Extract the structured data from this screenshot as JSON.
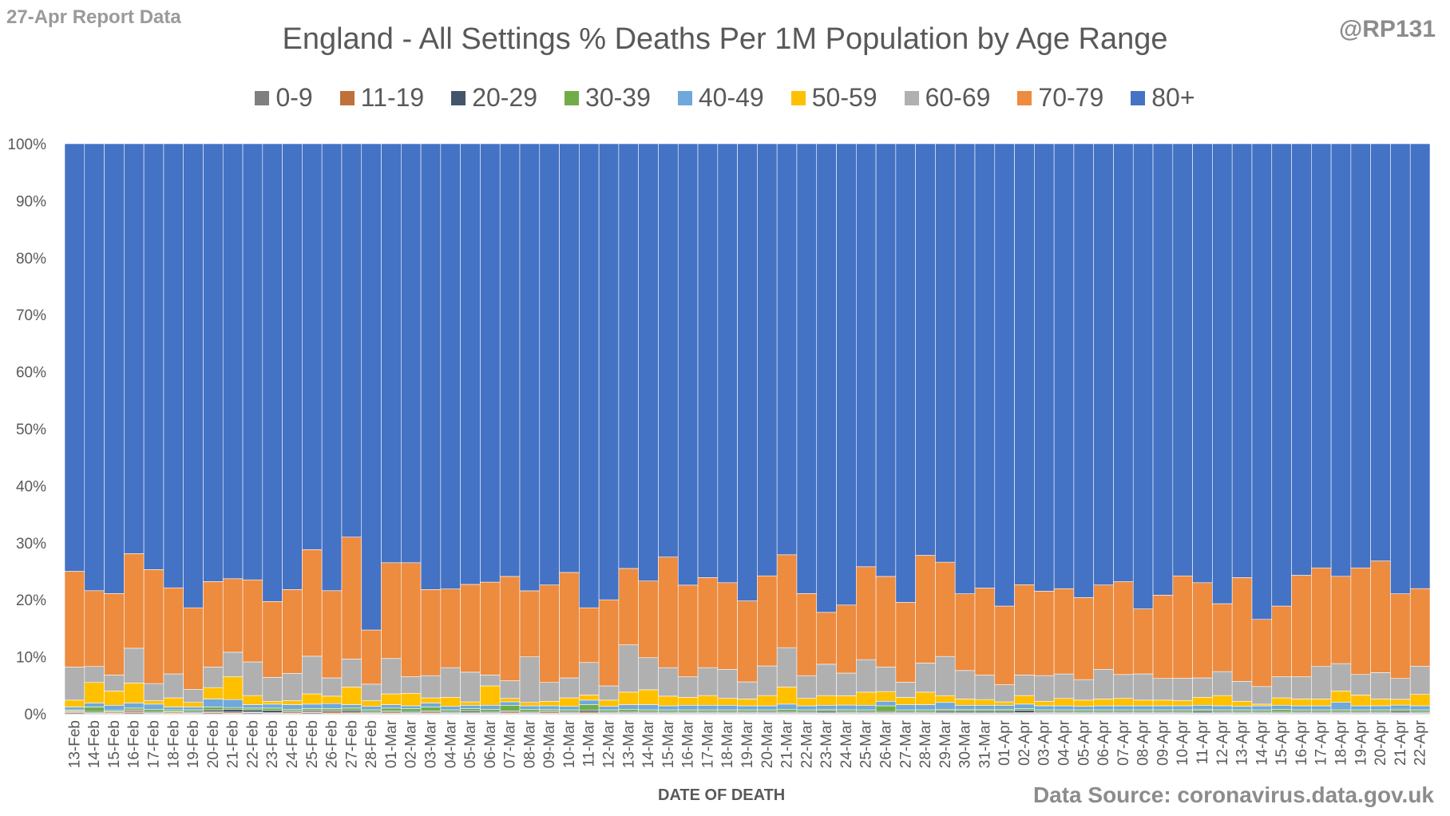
{
  "report_label": "27-Apr Report Data",
  "handle": "@RP131",
  "source": "Data Source: coronavirus.data.gov.uk",
  "colors": {
    "0-9": "#7f7f7f",
    "11-19": "#c0703a",
    "20-29": "#44546a",
    "30-39": "#70ad47",
    "40-49": "#6fa8dc",
    "50-59": "#ffc000",
    "60-69": "#b0b0b0",
    "70-79": "#ed8b3f",
    "80+": "#4472c4"
  },
  "chart_data": {
    "type": "bar",
    "stacked": "percent",
    "title": "England - All Settings % Deaths Per 1M Population by Age Range",
    "xlabel": "DATE OF DEATH",
    "ylabel": "",
    "ylim": [
      0,
      100
    ],
    "yticks": [
      "0%",
      "10%",
      "20%",
      "30%",
      "40%",
      "50%",
      "60%",
      "70%",
      "80%",
      "90%",
      "100%"
    ],
    "grid": false,
    "legend_position": "top",
    "categories": [
      "13-Feb",
      "14-Feb",
      "15-Feb",
      "16-Feb",
      "17-Feb",
      "18-Feb",
      "19-Feb",
      "20-Feb",
      "21-Feb",
      "22-Feb",
      "23-Feb",
      "24-Feb",
      "25-Feb",
      "26-Feb",
      "27-Feb",
      "28-Feb",
      "01-Mar",
      "02-Mar",
      "03-Mar",
      "04-Mar",
      "05-Mar",
      "06-Mar",
      "07-Mar",
      "08-Mar",
      "09-Mar",
      "10-Mar",
      "11-Mar",
      "12-Mar",
      "13-Mar",
      "14-Mar",
      "15-Mar",
      "16-Mar",
      "17-Mar",
      "18-Mar",
      "19-Mar",
      "20-Mar",
      "21-Mar",
      "22-Mar",
      "23-Mar",
      "24-Mar",
      "25-Mar",
      "26-Mar",
      "27-Mar",
      "28-Mar",
      "29-Mar",
      "30-Mar",
      "31-Mar",
      "01-Apr",
      "02-Apr",
      "03-Apr",
      "04-Apr",
      "05-Apr",
      "06-Apr",
      "07-Apr",
      "08-Apr",
      "09-Apr",
      "10-Apr",
      "11-Apr",
      "12-Apr",
      "13-Apr",
      "14-Apr",
      "15-Apr",
      "16-Apr",
      "17-Apr",
      "18-Apr",
      "19-Apr",
      "20-Apr",
      "21-Apr",
      "22-Apr"
    ],
    "series": [
      {
        "name": "0-9",
        "values": [
          0.2,
          0.1,
          0.1,
          0.2,
          0.1,
          0.1,
          0.1,
          0.2,
          0.1,
          0.2,
          0.1,
          0.1,
          0.2,
          0.1,
          0.1,
          0.1,
          0.1,
          0.1,
          0.1,
          0.1,
          0.1,
          0.1,
          0.1,
          0.1,
          0.1,
          0.1,
          0.1,
          0.1,
          0.1,
          0.1,
          0.1,
          0.1,
          0.1,
          0.1,
          0.1,
          0.1,
          0.1,
          0.1,
          0.1,
          0.1,
          0.1,
          0.1,
          0.1,
          0.1,
          0.1,
          0.1,
          0.1,
          0.1,
          0.1,
          0.1,
          0.1,
          0.1,
          0.1,
          0.1,
          0.1,
          0.1,
          0.1,
          0.1,
          0.1,
          0.1,
          0.1,
          0.1,
          0.1,
          0.1,
          0.1,
          0.1,
          0.1,
          0.1,
          0.1
        ]
      },
      {
        "name": "11-19",
        "values": [
          0.2,
          0.1,
          0.2,
          0.3,
          0.1,
          0.2,
          0.1,
          0.2,
          0.2,
          0.1,
          0.1,
          0.2,
          0.2,
          0.3,
          0.2,
          0.1,
          0.2,
          0.1,
          0.2,
          0.1,
          0.1,
          0.1,
          0.2,
          0.1,
          0.2,
          0.1,
          0.2,
          0.1,
          0.1,
          0.1,
          0.1,
          0.1,
          0.1,
          0.1,
          0.1,
          0.1,
          0.1,
          0.1,
          0.1,
          0.1,
          0.1,
          0.1,
          0.1,
          0.1,
          0.1,
          0.1,
          0.1,
          0.1,
          0.1,
          0.1,
          0.1,
          0.1,
          0.1,
          0.1,
          0.1,
          0.1,
          0.1,
          0.1,
          0.1,
          0.1,
          0.1,
          0.1,
          0.1,
          0.1,
          0.1,
          0.1,
          0.1,
          0.1,
          0.1
        ]
      },
      {
        "name": "20-29",
        "values": [
          0.1,
          0.2,
          0.1,
          0.2,
          0.2,
          0.1,
          0.2,
          0.3,
          0.5,
          0.4,
          0.4,
          0.2,
          0.2,
          0.2,
          0.3,
          0.2,
          0.2,
          0.2,
          0.2,
          0.2,
          0.3,
          0.2,
          0.2,
          0.2,
          0.2,
          0.2,
          0.3,
          0.2,
          0.2,
          0.2,
          0.2,
          0.2,
          0.2,
          0.2,
          0.2,
          0.2,
          0.2,
          0.2,
          0.3,
          0.2,
          0.2,
          0.2,
          0.2,
          0.2,
          0.3,
          0.3,
          0.3,
          0.3,
          0.4,
          0.2,
          0.2,
          0.2,
          0.2,
          0.2,
          0.2,
          0.2,
          0.2,
          0.3,
          0.2,
          0.2,
          0.2,
          0.2,
          0.2,
          0.2,
          0.2,
          0.2,
          0.2,
          0.3,
          0.2
        ]
      },
      {
        "name": "30-39",
        "values": [
          0.2,
          0.8,
          0.2,
          0.3,
          0.4,
          0.3,
          0.3,
          0.5,
          0.3,
          0.3,
          0.4,
          0.3,
          0.3,
          0.3,
          0.4,
          0.3,
          0.5,
          0.5,
          0.7,
          0.3,
          0.4,
          0.4,
          1.0,
          0.4,
          0.3,
          0.3,
          1.0,
          0.3,
          0.4,
          0.3,
          0.3,
          0.3,
          0.3,
          0.3,
          0.3,
          0.3,
          0.4,
          0.3,
          0.3,
          0.3,
          0.3,
          1.0,
          0.3,
          0.3,
          0.3,
          0.3,
          0.3,
          0.3,
          0.3,
          0.3,
          0.3,
          0.3,
          0.3,
          0.3,
          0.3,
          0.3,
          0.3,
          0.3,
          0.3,
          0.3,
          0.3,
          0.4,
          0.3,
          0.3,
          0.3,
          0.3,
          0.3,
          0.3,
          0.3
        ]
      },
      {
        "name": "40-49",
        "values": [
          0.5,
          0.7,
          0.9,
          0.9,
          0.9,
          0.5,
          0.5,
          1.4,
          1.4,
          0.6,
          0.7,
          0.8,
          0.8,
          0.9,
          0.6,
          0.6,
          0.6,
          0.5,
          0.7,
          0.6,
          0.6,
          0.7,
          0.6,
          0.6,
          0.6,
          0.6,
          0.8,
          0.6,
          0.8,
          0.9,
          0.7,
          0.8,
          0.8,
          0.8,
          0.7,
          0.7,
          0.9,
          0.7,
          0.7,
          0.8,
          0.8,
          0.8,
          0.9,
          0.9,
          1.2,
          0.7,
          0.7,
          0.7,
          0.8,
          0.7,
          0.7,
          0.6,
          0.7,
          0.7,
          0.7,
          0.7,
          0.7,
          0.7,
          0.7,
          0.6,
          0.7,
          0.7,
          0.7,
          0.7,
          1.3,
          0.7,
          0.7,
          0.7,
          0.7
        ]
      },
      {
        "name": "50-59",
        "values": [
          1.2,
          3.6,
          2.5,
          3.5,
          0.6,
          1.6,
          0.8,
          2.0,
          4.0,
          1.6,
          0.5,
          0.7,
          1.8,
          1.3,
          3.1,
          1.0,
          1.9,
          2.2,
          0.9,
          1.6,
          0.6,
          3.4,
          0.6,
          0.6,
          0.8,
          1.5,
          0.9,
          1.1,
          2.2,
          2.6,
          1.7,
          1.4,
          1.7,
          1.2,
          1.2,
          1.8,
          3.0,
          1.3,
          1.7,
          1.6,
          2.3,
          1.7,
          1.3,
          2.2,
          1.2,
          1.1,
          1.0,
          0.6,
          1.5,
          0.8,
          1.3,
          1.1,
          1.2,
          1.3,
          1.0,
          1.0,
          0.9,
          1.4,
          1.8,
          0.9,
          0.3,
          1.3,
          1.2,
          1.2,
          2.0,
          1.9,
          1.2,
          1.0,
          2.0
        ]
      },
      {
        "name": "60-69",
        "values": [
          5.8,
          2.8,
          2.8,
          6.1,
          3.0,
          4.2,
          2.3,
          3.6,
          4.3,
          5.9,
          4.2,
          4.8,
          6.6,
          3.2,
          4.9,
          2.9,
          6.2,
          2.9,
          3.9,
          5.2,
          5.2,
          1.9,
          3.1,
          8.0,
          3.3,
          3.5,
          5.7,
          2.5,
          8.3,
          5.6,
          5.0,
          3.6,
          4.9,
          5.1,
          3.0,
          5.2,
          6.9,
          4.0,
          5.5,
          3.9,
          5.7,
          4.3,
          2.7,
          5.1,
          6.9,
          5.0,
          4.3,
          3.0,
          3.6,
          4.5,
          4.3,
          3.6,
          5.2,
          4.2,
          4.6,
          3.8,
          3.9,
          3.4,
          4.2,
          3.5,
          3.1,
          3.7,
          3.9,
          5.7,
          4.8,
          3.6,
          4.6,
          3.6,
          4.9
        ]
      },
      {
        "name": "70-79",
        "values": [
          16.8,
          13.3,
          14.3,
          16.6,
          20.0,
          15.1,
          14.3,
          15.0,
          12.9,
          14.4,
          13.3,
          14.7,
          18.7,
          15.3,
          21.4,
          9.5,
          16.8,
          20.0,
          15.1,
          13.8,
          15.4,
          16.3,
          18.3,
          11.6,
          17.1,
          18.5,
          9.6,
          15.1,
          13.4,
          13.4,
          19.4,
          16.1,
          15.8,
          15.2,
          14.2,
          15.8,
          16.3,
          14.4,
          9.1,
          11.7,
          16.3,
          15.9,
          14.1,
          18.9,
          16.6,
          13.5,
          15.3,
          13.8,
          15.8,
          14.8,
          15.0,
          14.4,
          14.8,
          16.3,
          11.4,
          14.6,
          17.9,
          16.7,
          11.9,
          18.2,
          11.8,
          12.4,
          17.8,
          17.3,
          15.3,
          18.7,
          19.5,
          14.6,
          13.6
        ]
      },
      {
        "name": "80+",
        "values": [
          75.0,
          78.4,
          78.9,
          71.9,
          74.7,
          77.9,
          81.4,
          76.8,
          76.3,
          76.5,
          80.3,
          78.2,
          71.2,
          78.4,
          69.0,
          85.3,
          73.5,
          73.5,
          78.2,
          78.1,
          77.3,
          76.9,
          75.9,
          78.5,
          77.4,
          75.2,
          81.4,
          80.0,
          74.5,
          76.4,
          72.5,
          77.5,
          76.1,
          77.0,
          80.2,
          75.8,
          72.1,
          78.9,
          82.2,
          79.3,
          74.2,
          75.9,
          81.1,
          72.2,
          73.7,
          79.1,
          78.1,
          81.1,
          77.2,
          78.4,
          78.2,
          79.6,
          77.4,
          76.9,
          81.6,
          79.1,
          75.5,
          77.0,
          80.6,
          76.1,
          83.6,
          81.1,
          75.7,
          74.4,
          75.8,
          74.4,
          72.9,
          77.6,
          77.8
        ]
      }
    ]
  }
}
